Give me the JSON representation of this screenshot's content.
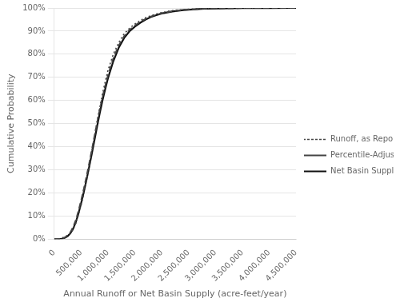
{
  "chart_data": {
    "type": "line",
    "xlabel": "Annual Runoff or Net Basin Supply (acre-feet/year)",
    "ylabel": "Cumulative Probability",
    "xlim": [
      0,
      4500000
    ],
    "ylim": [
      0,
      1.0
    ],
    "xticks": [
      0,
      {
        "value": 500000,
        "label": "500,000"
      },
      {
        "value": 1000000,
        "label": "1,000,000"
      },
      {
        "value": 1500000,
        "label": "1,500,000"
      },
      {
        "value": 2000000,
        "label": "2,000,000"
      },
      {
        "value": 2500000,
        "label": "2,500,000"
      },
      {
        "value": 3000000,
        "label": "3,000,000"
      },
      {
        "value": 3500000,
        "label": "3,500,000"
      },
      {
        "value": 4000000,
        "label": "4,000,000"
      },
      {
        "value": 4500000,
        "label": "4,500,000"
      }
    ],
    "yticks": [
      {
        "value": 0.0,
        "label": "0%"
      },
      {
        "value": 0.1,
        "label": "10%"
      },
      {
        "value": 0.2,
        "label": "20%"
      },
      {
        "value": 0.3,
        "label": "30%"
      },
      {
        "value": 0.4,
        "label": "40%"
      },
      {
        "value": 0.5,
        "label": "50%"
      },
      {
        "value": 0.6,
        "label": "60%"
      },
      {
        "value": 0.7,
        "label": "70%"
      },
      {
        "value": 0.8,
        "label": "80%"
      },
      {
        "value": 0.9,
        "label": "90%"
      },
      {
        "value": 1.0,
        "label": "100%"
      }
    ],
    "grid": "y",
    "legend": "right",
    "series": [
      {
        "name": "Runoff, as Reported",
        "color": "#444444",
        "line_style": "dotted",
        "x": [
          0,
          100000,
          200000,
          300000,
          350000,
          400000,
          450000,
          500000,
          550000,
          600000,
          650000,
          700000,
          750000,
          800000,
          850000,
          900000,
          950000,
          1000000,
          1100000,
          1200000,
          1300000,
          1400000,
          1500000,
          1600000,
          1700000,
          1800000,
          1900000,
          2000000,
          2100000,
          2200000,
          2400000,
          2600000,
          2800000,
          3000000,
          3500000,
          4000000,
          4500000
        ],
        "values": [
          0.0,
          0.002,
          0.01,
          0.025,
          0.042,
          0.068,
          0.105,
          0.148,
          0.195,
          0.255,
          0.315,
          0.38,
          0.445,
          0.51,
          0.572,
          0.63,
          0.682,
          0.73,
          0.8,
          0.85,
          0.888,
          0.912,
          0.93,
          0.946,
          0.958,
          0.967,
          0.974,
          0.98,
          0.985,
          0.989,
          0.993,
          0.996,
          0.998,
          0.999,
          0.9995,
          0.9998,
          1.0
        ]
      },
      {
        "name": "Percentile-Adjusted Runoff",
        "color": "#444444",
        "line_style": "dashed",
        "x": [
          0,
          100000,
          150000,
          200000,
          250000,
          300000,
          350000,
          400000,
          450000,
          500000,
          550000,
          600000,
          650000,
          700000,
          750000,
          800000,
          850000,
          900000,
          950000,
          1000000,
          1100000,
          1200000,
          1300000,
          1400000,
          1500000,
          1600000,
          1700000,
          1800000,
          1900000,
          2000000,
          2200000,
          2400000,
          2600000,
          2800000,
          3000000,
          3500000,
          4000000,
          4500000
        ],
        "values": [
          0.0,
          0.001,
          0.003,
          0.008,
          0.016,
          0.03,
          0.052,
          0.082,
          0.122,
          0.168,
          0.218,
          0.272,
          0.328,
          0.388,
          0.448,
          0.508,
          0.565,
          0.618,
          0.665,
          0.71,
          0.783,
          0.838,
          0.878,
          0.905,
          0.924,
          0.94,
          0.953,
          0.963,
          0.971,
          0.977,
          0.986,
          0.991,
          0.994,
          0.997,
          0.998,
          0.9993,
          0.9997,
          1.0
        ]
      },
      {
        "name": "Net Basin Supply",
        "color": "#111111",
        "line_style": "solid",
        "x": [
          0,
          100000,
          150000,
          200000,
          250000,
          300000,
          350000,
          400000,
          450000,
          500000,
          550000,
          600000,
          650000,
          700000,
          750000,
          800000,
          850000,
          900000,
          950000,
          1000000,
          1100000,
          1200000,
          1300000,
          1400000,
          1500000,
          1600000,
          1700000,
          1800000,
          1900000,
          2000000,
          2200000,
          2400000,
          2600000,
          2800000,
          3000000,
          3500000,
          4000000,
          4500000
        ],
        "values": [
          0.0,
          0.001,
          0.002,
          0.006,
          0.013,
          0.025,
          0.044,
          0.072,
          0.11,
          0.155,
          0.203,
          0.256,
          0.312,
          0.37,
          0.43,
          0.49,
          0.548,
          0.602,
          0.65,
          0.696,
          0.77,
          0.828,
          0.87,
          0.899,
          0.919,
          0.936,
          0.95,
          0.961,
          0.969,
          0.976,
          0.985,
          0.991,
          0.994,
          0.997,
          0.998,
          0.9993,
          0.9997,
          1.0
        ]
      }
    ]
  }
}
